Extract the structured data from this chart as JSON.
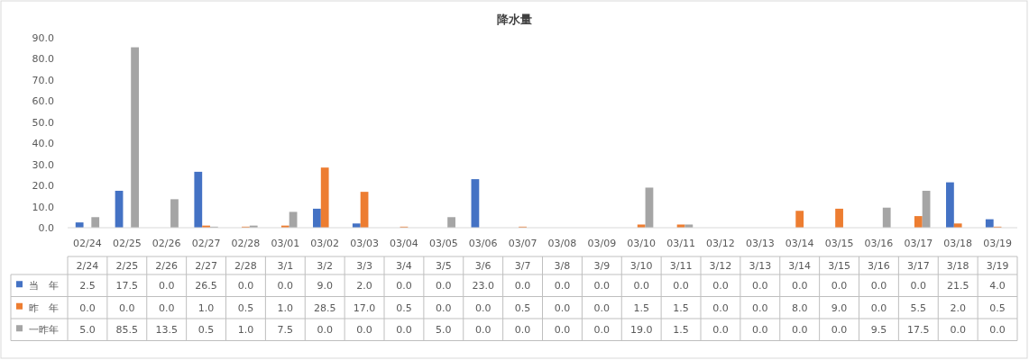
{
  "chart_data": {
    "type": "bar",
    "title": "降水量",
    "categories": [
      "02/24",
      "02/25",
      "02/26",
      "02/27",
      "02/28",
      "03/01",
      "03/02",
      "03/03",
      "03/04",
      "03/05",
      "03/06",
      "03/07",
      "03/08",
      "03/09",
      "03/10",
      "03/11",
      "03/12",
      "03/13",
      "03/14",
      "03/15",
      "03/16",
      "03/17",
      "03/18",
      "03/19"
    ],
    "annotations": [
      "2/24",
      "2/25",
      "2/26",
      "2/27",
      "2/28",
      "3/1",
      "3/2",
      "3/3",
      "3/4",
      "3/5",
      "3/6",
      "3/7",
      "3/8",
      "3/9",
      "3/10",
      "3/11",
      "3/12",
      "3/13",
      "3/14",
      "3/15",
      "3/16",
      "3/17",
      "3/18",
      "3/19"
    ],
    "series": [
      {
        "name": "当　年",
        "color": "#4472c4",
        "values": [
          2.5,
          17.5,
          0,
          26.5,
          0,
          0,
          9,
          2,
          0,
          0,
          23,
          0,
          0,
          0,
          0,
          0,
          0,
          0,
          0,
          0,
          0,
          0,
          21.5,
          4
        ],
        "value_labels": [
          "2.5",
          "17.5",
          "0.0",
          "26.5",
          "0.0",
          "0.0",
          "9.0",
          "2.0",
          "0.0",
          "0.0",
          "23.0",
          "0.0",
          "0.0",
          "0.0",
          "0.0",
          "0.0",
          "0.0",
          "0.0",
          "0.0",
          "0.0",
          "0.0",
          "0.0",
          "21.5",
          "4.0"
        ]
      },
      {
        "name": "昨　年",
        "color": "#ed7d31",
        "values": [
          0,
          0,
          0,
          1,
          0.5,
          1,
          28.5,
          17,
          0.5,
          0,
          0,
          0.5,
          0,
          0,
          1.5,
          1.5,
          0,
          0,
          8,
          9,
          0,
          5.5,
          2,
          0.5
        ],
        "value_labels": [
          "0.0",
          "0.0",
          "0.0",
          "1.0",
          "0.5",
          "1.0",
          "28.5",
          "17.0",
          "0.5",
          "0.0",
          "0.0",
          "0.5",
          "0.0",
          "0.0",
          "1.5",
          "1.5",
          "0.0",
          "0.0",
          "8.0",
          "9.0",
          "0.0",
          "5.5",
          "2.0",
          "0.5"
        ]
      },
      {
        "name": "一昨年",
        "color": "#a5a5a5",
        "values": [
          5,
          85.5,
          13.5,
          0.5,
          1,
          7.5,
          0,
          0,
          0,
          5,
          0,
          0,
          0,
          0,
          19,
          1.5,
          0,
          0,
          0,
          0,
          9.5,
          17.5,
          0,
          0
        ],
        "value_labels": [
          "5.0",
          "85.5",
          "13.5",
          "0.5",
          "1.0",
          "7.5",
          "0.0",
          "0.0",
          "0.0",
          "5.0",
          "0.0",
          "0.0",
          "0.0",
          "0.0",
          "19.0",
          "1.5",
          "0.0",
          "0.0",
          "0.0",
          "0.0",
          "9.5",
          "17.5",
          "0.0",
          "0.0"
        ]
      }
    ],
    "ylim": [
      0,
      90
    ],
    "yticks": [
      {
        "value": 0,
        "label": "0.0"
      },
      {
        "value": 10,
        "label": "10.0"
      },
      {
        "value": 20,
        "label": "20.0"
      },
      {
        "value": 30,
        "label": "30.0"
      },
      {
        "value": 40,
        "label": "40.0"
      },
      {
        "value": 50,
        "label": "50.0"
      },
      {
        "value": 60,
        "label": "60.0"
      },
      {
        "value": 70,
        "label": "70.0"
      },
      {
        "value": 80,
        "label": "80.0"
      },
      {
        "value": 90,
        "label": "90.0"
      }
    ],
    "legend": "bottom"
  }
}
